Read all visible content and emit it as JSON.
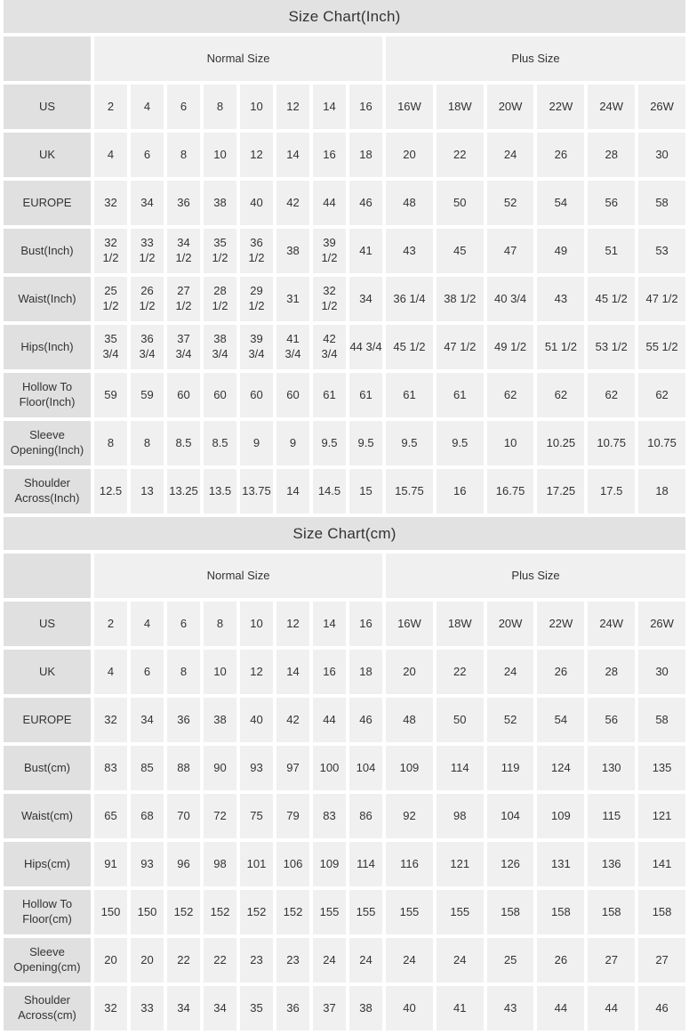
{
  "colors": {
    "title_bar_bg": "#e2e2e2",
    "label_cell_bg": "#e0e0e0",
    "data_cell_bg": "#f0f0f0",
    "gap_color": "#ffffff",
    "text": "#333333"
  },
  "chart_data": [
    {
      "type": "table",
      "title": "Size Chart(Inch)",
      "column_groups": [
        {
          "label": "",
          "span": 1
        },
        {
          "label": "Normal Size",
          "span": 8
        },
        {
          "label": "Plus Size",
          "span": 6
        }
      ],
      "rows": [
        {
          "label": "US",
          "values": [
            "2",
            "4",
            "6",
            "8",
            "10",
            "12",
            "14",
            "16",
            "16W",
            "18W",
            "20W",
            "22W",
            "24W",
            "26W"
          ]
        },
        {
          "label": "UK",
          "values": [
            "4",
            "6",
            "8",
            "10",
            "12",
            "14",
            "16",
            "18",
            "20",
            "22",
            "24",
            "26",
            "28",
            "30"
          ]
        },
        {
          "label": "EUROPE",
          "values": [
            "32",
            "34",
            "36",
            "38",
            "40",
            "42",
            "44",
            "46",
            "48",
            "50",
            "52",
            "54",
            "56",
            "58"
          ]
        },
        {
          "label": "Bust(Inch)",
          "values": [
            "32\n1/2",
            "33\n1/2",
            "34\n1/2",
            "35\n1/2",
            "36\n1/2",
            "38",
            "39\n1/2",
            "41",
            "43",
            "45",
            "47",
            "49",
            "51",
            "53"
          ]
        },
        {
          "label": "Waist(Inch)",
          "values": [
            "25\n1/2",
            "26\n1/2",
            "27\n1/2",
            "28\n1/2",
            "29\n1/2",
            "31",
            "32\n1/2",
            "34",
            "36 1/4",
            "38 1/2",
            "40 3/4",
            "43",
            "45 1/2",
            "47 1/2"
          ]
        },
        {
          "label": "Hips(Inch)",
          "values": [
            "35\n3/4",
            "36\n3/4",
            "37\n3/4",
            "38\n3/4",
            "39\n3/4",
            "41\n3/4",
            "42\n3/4",
            "44 3/4",
            "45 1/2",
            "47 1/2",
            "49 1/2",
            "51 1/2",
            "53 1/2",
            "55 1/2"
          ]
        },
        {
          "label": "Hollow To Floor(Inch)",
          "values": [
            "59",
            "59",
            "60",
            "60",
            "60",
            "60",
            "61",
            "61",
            "61",
            "61",
            "62",
            "62",
            "62",
            "62"
          ]
        },
        {
          "label": "Sleeve Opening(Inch)",
          "values": [
            "8",
            "8",
            "8.5",
            "8.5",
            "9",
            "9",
            "9.5",
            "9.5",
            "9.5",
            "9.5",
            "10",
            "10.25",
            "10.75",
            "10.75"
          ]
        },
        {
          "label": "Shoulder Across(Inch)",
          "values": [
            "12.5",
            "13",
            "13.25",
            "13.5",
            "13.75",
            "14",
            "14.5",
            "15",
            "15.75",
            "16",
            "16.75",
            "17.25",
            "17.5",
            "18"
          ]
        }
      ]
    },
    {
      "type": "table",
      "title": "Size Chart(cm)",
      "column_groups": [
        {
          "label": "",
          "span": 1
        },
        {
          "label": "Normal Size",
          "span": 8
        },
        {
          "label": "Plus Size",
          "span": 6
        }
      ],
      "rows": [
        {
          "label": "US",
          "values": [
            "2",
            "4",
            "6",
            "8",
            "10",
            "12",
            "14",
            "16",
            "16W",
            "18W",
            "20W",
            "22W",
            "24W",
            "26W"
          ]
        },
        {
          "label": "UK",
          "values": [
            "4",
            "6",
            "8",
            "10",
            "12",
            "14",
            "16",
            "18",
            "20",
            "22",
            "24",
            "26",
            "28",
            "30"
          ]
        },
        {
          "label": "EUROPE",
          "values": [
            "32",
            "34",
            "36",
            "38",
            "40",
            "42",
            "44",
            "46",
            "48",
            "50",
            "52",
            "54",
            "56",
            "58"
          ]
        },
        {
          "label": "Bust(cm)",
          "values": [
            "83",
            "85",
            "88",
            "90",
            "93",
            "97",
            "100",
            "104",
            "109",
            "114",
            "119",
            "124",
            "130",
            "135"
          ]
        },
        {
          "label": "Waist(cm)",
          "values": [
            "65",
            "68",
            "70",
            "72",
            "75",
            "79",
            "83",
            "86",
            "92",
            "98",
            "104",
            "109",
            "115",
            "121"
          ]
        },
        {
          "label": "Hips(cm)",
          "values": [
            "91",
            "93",
            "96",
            "98",
            "101",
            "106",
            "109",
            "114",
            "116",
            "121",
            "126",
            "131",
            "136",
            "141"
          ]
        },
        {
          "label": "Hollow To Floor(cm)",
          "values": [
            "150",
            "150",
            "152",
            "152",
            "152",
            "152",
            "155",
            "155",
            "155",
            "155",
            "158",
            "158",
            "158",
            "158"
          ]
        },
        {
          "label": "Sleeve Opening(cm)",
          "values": [
            "20",
            "20",
            "22",
            "22",
            "23",
            "23",
            "24",
            "24",
            "24",
            "24",
            "25",
            "26",
            "27",
            "27"
          ]
        },
        {
          "label": "Shoulder Across(cm)",
          "values": [
            "32",
            "33",
            "34",
            "34",
            "35",
            "36",
            "37",
            "38",
            "40",
            "41",
            "43",
            "44",
            "44",
            "46"
          ]
        }
      ]
    }
  ]
}
